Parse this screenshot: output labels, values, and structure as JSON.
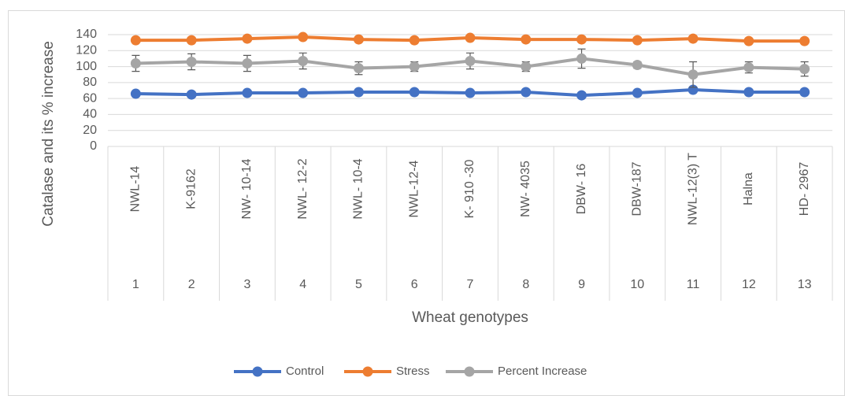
{
  "chart_data": {
    "type": "line",
    "x_label": "Wheat genotypes",
    "y_label": "Catalase and its % increase",
    "categories": [
      "NWL-14",
      "K-9162",
      "NW- 10-14",
      "NWL- 12-2",
      "NWL- 10-4",
      "NWL-12-4",
      "K- 910 -30",
      "NW- 4035",
      "DBW- 16",
      "DBW-187",
      "NWL-12(3) T",
      "Halna",
      "HD- 2967"
    ],
    "category_numbers": [
      1,
      2,
      3,
      4,
      5,
      6,
      7,
      8,
      9,
      10,
      11,
      12,
      13
    ],
    "series": [
      {
        "name": "Control",
        "color": "#4472c4",
        "values": [
          66,
          65,
          67,
          67,
          68,
          68,
          67,
          68,
          64,
          67,
          71,
          68,
          68
        ]
      },
      {
        "name": "Stress",
        "color": "#ed7d31",
        "values": [
          133,
          133,
          135,
          137,
          134,
          133,
          136,
          134,
          134,
          133,
          135,
          132,
          132
        ]
      },
      {
        "name": "Percent Increase",
        "color": "#a5a5a5",
        "values": [
          104,
          106,
          104,
          107,
          98,
          100,
          107,
          100,
          110,
          102,
          90,
          99,
          97
        ],
        "errors": [
          10,
          10,
          10,
          10,
          8,
          6,
          10,
          6,
          12,
          4,
          16,
          7,
          9
        ]
      }
    ],
    "ylim": [
      0,
      140
    ],
    "yticks": [
      0,
      20,
      40,
      60,
      80,
      100,
      120,
      140
    ],
    "grid": true,
    "legend": "bottom"
  }
}
